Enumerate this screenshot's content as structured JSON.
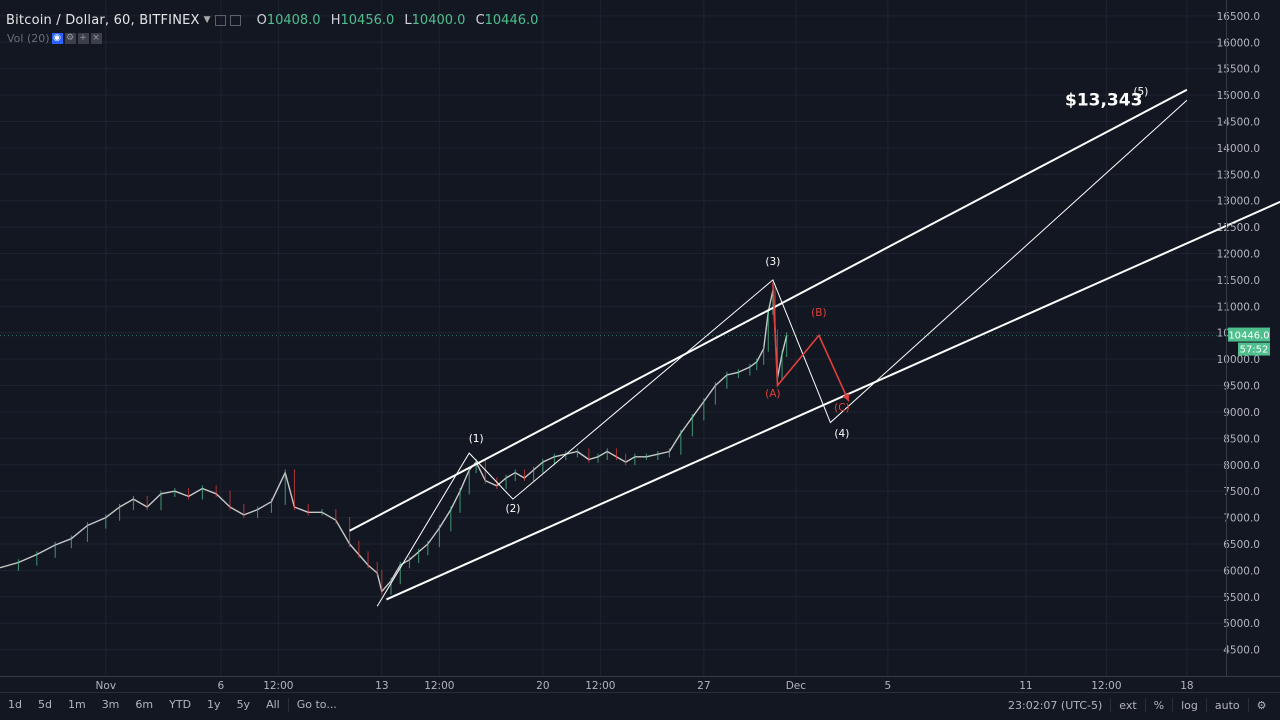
{
  "header": {
    "symbol": "Bitcoin / Dollar, 60, BITFINEX",
    "ohlc": [
      {
        "key": "O",
        "value": "10408.0"
      },
      {
        "key": "H",
        "value": "10456.0"
      },
      {
        "key": "L",
        "value": "10400.0"
      },
      {
        "key": "C",
        "value": "10446.0"
      }
    ],
    "volume_label": "Vol (20)"
  },
  "chart_data": {
    "type": "line",
    "title": "",
    "xlabel": "",
    "ylabel": "",
    "y_axis_position": "right",
    "grid": true,
    "ylim": [
      4000,
      16800
    ],
    "y_ticks": [
      4500,
      5000,
      5500,
      6000,
      6500,
      7000,
      7500,
      8000,
      8500,
      9000,
      9500,
      10000,
      10500,
      11000,
      11500,
      12000,
      12500,
      13000,
      13500,
      14000,
      14500,
      15000,
      15500,
      16000,
      16500
    ],
    "y_tick_labels": [
      "4500.0",
      "5000.0",
      "5500.0",
      "6000.0",
      "6500.0",
      "7000.0",
      "7500.0",
      "8000.0",
      "8500.0",
      "9000.0",
      "9500.0",
      "10000.0",
      "10500.0",
      "11000.0",
      "11500.0",
      "12000.0",
      "12500.0",
      "13000.0",
      "13500.0",
      "14000.0",
      "14500.0",
      "15000.0",
      "15500.0",
      "16000.0",
      "16500.0"
    ],
    "x_day_range": [
      -4.6,
      48.7
    ],
    "x_ticks": [
      {
        "label": "Nov",
        "day": 0
      },
      {
        "label": "6",
        "day": 5
      },
      {
        "label": "12:00",
        "day": 7.5
      },
      {
        "label": "13",
        "day": 12
      },
      {
        "label": "12:00",
        "day": 14.5
      },
      {
        "label": "20",
        "day": 19
      },
      {
        "label": "12:00",
        "day": 21.5
      },
      {
        "label": "27",
        "day": 26
      },
      {
        "label": "Dec",
        "day": 30
      },
      {
        "label": "5",
        "day": 34
      },
      {
        "label": "11",
        "day": 40
      },
      {
        "label": "12:00",
        "day": 43.5
      },
      {
        "label": "18",
        "day": 47
      }
    ],
    "series": [
      {
        "points": [
          [
            -4.6,
            6050
          ],
          [
            -3.8,
            6150
          ],
          [
            -3.0,
            6300
          ],
          [
            -2.2,
            6480
          ],
          [
            -1.5,
            6600
          ],
          [
            -0.8,
            6850
          ],
          [
            0.0,
            7000
          ],
          [
            0.6,
            7200
          ],
          [
            1.2,
            7350
          ],
          [
            1.8,
            7200
          ],
          [
            2.4,
            7450
          ],
          [
            3.0,
            7500
          ],
          [
            3.6,
            7400
          ],
          [
            4.2,
            7550
          ],
          [
            4.8,
            7450
          ],
          [
            5.4,
            7200
          ],
          [
            6.0,
            7050
          ],
          [
            6.6,
            7150
          ],
          [
            7.2,
            7300
          ],
          [
            7.8,
            7850
          ],
          [
            8.2,
            7200
          ],
          [
            8.8,
            7100
          ],
          [
            9.4,
            7100
          ],
          [
            10.0,
            6950
          ],
          [
            10.6,
            6500
          ],
          [
            11.0,
            6300
          ],
          [
            11.4,
            6100
          ],
          [
            11.8,
            5950
          ],
          [
            12.0,
            5600
          ],
          [
            12.4,
            5800
          ],
          [
            12.8,
            6100
          ],
          [
            13.2,
            6200
          ],
          [
            13.6,
            6350
          ],
          [
            14.0,
            6500
          ],
          [
            14.5,
            6800
          ],
          [
            15.0,
            7150
          ],
          [
            15.4,
            7500
          ],
          [
            15.8,
            7900
          ],
          [
            16.1,
            8050
          ],
          [
            16.5,
            7700
          ],
          [
            17.0,
            7600
          ],
          [
            17.4,
            7750
          ],
          [
            17.8,
            7850
          ],
          [
            18.2,
            7750
          ],
          [
            18.6,
            7900
          ],
          [
            19.0,
            8050
          ],
          [
            19.5,
            8150
          ],
          [
            20.0,
            8200
          ],
          [
            20.5,
            8250
          ],
          [
            21.0,
            8100
          ],
          [
            21.4,
            8150
          ],
          [
            21.8,
            8250
          ],
          [
            22.2,
            8150
          ],
          [
            22.6,
            8050
          ],
          [
            23.0,
            8150
          ],
          [
            23.5,
            8150
          ],
          [
            24.0,
            8200
          ],
          [
            24.5,
            8250
          ],
          [
            25.0,
            8600
          ],
          [
            25.5,
            8900
          ],
          [
            26.0,
            9200
          ],
          [
            26.5,
            9500
          ],
          [
            27.0,
            9700
          ],
          [
            27.5,
            9750
          ],
          [
            28.0,
            9850
          ],
          [
            28.3,
            9950
          ],
          [
            28.6,
            10200
          ],
          [
            28.8,
            10900
          ],
          [
            29.0,
            11300
          ],
          [
            29.1,
            10500
          ],
          [
            29.2,
            9650
          ],
          [
            29.4,
            10100
          ],
          [
            29.6,
            10446
          ]
        ]
      }
    ],
    "channels": [
      {
        "p1": [
          10.6,
          6750
        ],
        "p2": [
          47.0,
          15100
        ]
      },
      {
        "p1": [
          12.2,
          5450
        ],
        "p2": [
          55.3,
          13800
        ]
      }
    ],
    "wave_lines": [
      {
        "color": "#ffffff",
        "points": [
          [
            11.8,
            5320
          ],
          [
            15.8,
            8220
          ],
          [
            17.7,
            7350
          ],
          [
            29.0,
            11500
          ],
          [
            31.5,
            8800
          ],
          [
            47.0,
            14900
          ]
        ]
      },
      {
        "color": "#e0403a",
        "points": [
          [
            29.0,
            11450
          ],
          [
            29.2,
            9500
          ],
          [
            31.0,
            10450
          ],
          [
            32.3,
            9200
          ]
        ]
      }
    ],
    "wave_labels": [
      {
        "text": "(1)",
        "day": 16.1,
        "price": 8430,
        "color": "#ffffff"
      },
      {
        "text": "(2)",
        "day": 17.7,
        "price": 7110,
        "color": "#ffffff"
      },
      {
        "text": "(3)",
        "day": 29.0,
        "price": 11780,
        "color": "#ffffff"
      },
      {
        "text": "(4)",
        "day": 32.0,
        "price": 8530,
        "color": "#ffffff"
      },
      {
        "text": "(5)",
        "day": 45.0,
        "price": 15000,
        "color": "#ffffff"
      },
      {
        "text": "(A)",
        "day": 29.0,
        "price": 9280,
        "color": "#e0403a"
      },
      {
        "text": "(B)",
        "day": 31.0,
        "price": 10820,
        "color": "#e0403a"
      },
      {
        "text": "(C)",
        "day": 32.0,
        "price": 9020,
        "color": "#e0403a"
      }
    ],
    "annotations": [
      {
        "text": "$13,343",
        "day": 41.7,
        "price": 14800
      }
    ],
    "last_price_label": "10446.0",
    "countdown_label": "57:52",
    "last_price": 10446
  },
  "bottom_bar": {
    "ranges": [
      "1d",
      "5d",
      "1m",
      "3m",
      "6m",
      "YTD",
      "1y",
      "5y",
      "All"
    ],
    "goto_label": "Go to...",
    "clock": "23:02:07 (UTC-5)",
    "toggles": [
      "ext",
      "%",
      "log",
      "auto"
    ]
  },
  "colors": {
    "background": "#131722",
    "grid": "#1f2330",
    "price_line": "#c8c8c8",
    "up": "#4fbf8e",
    "down": "#e0403a",
    "channel": "#ffffff"
  }
}
